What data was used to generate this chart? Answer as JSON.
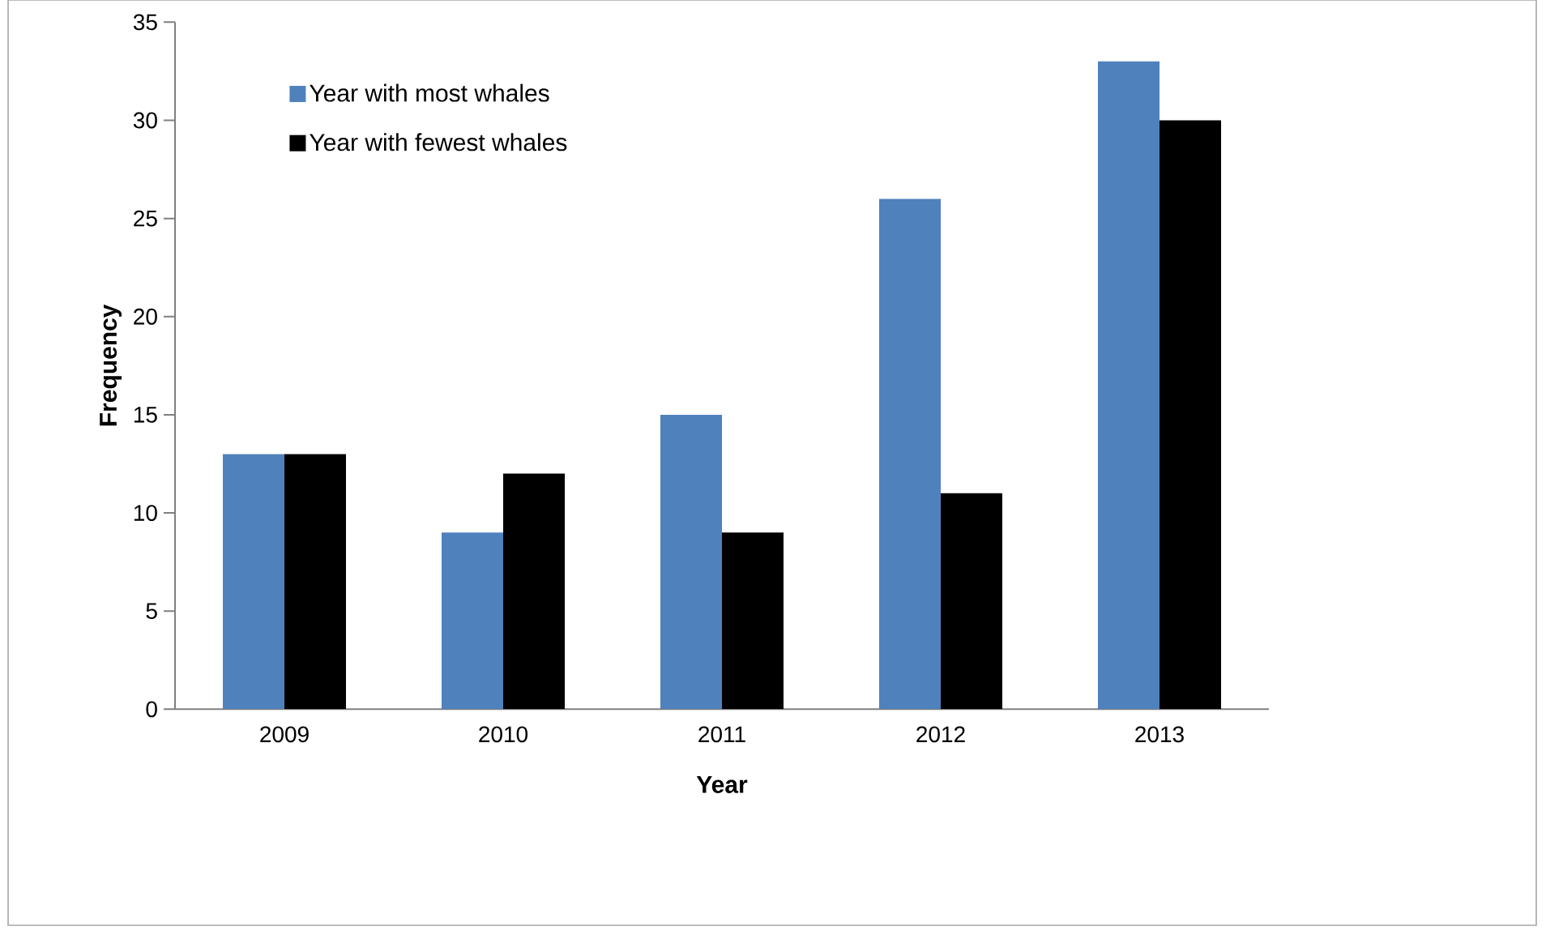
{
  "chart_data": {
    "type": "bar",
    "xlabel": "Year",
    "ylabel": "Frequency",
    "categories": [
      "2009",
      "2010",
      "2011",
      "2012",
      "2013"
    ],
    "series": [
      {
        "name": "Year with most whales",
        "color": "#4f81bd",
        "values": [
          13,
          9,
          15,
          26,
          33
        ]
      },
      {
        "name": "Year with fewest whales",
        "color": "#000000",
        "values": [
          13,
          12,
          9,
          11,
          30
        ]
      }
    ],
    "ylim": [
      0,
      35
    ],
    "yticks": [
      0,
      5,
      10,
      15,
      20,
      25,
      30,
      35
    ],
    "legend": "top left"
  }
}
